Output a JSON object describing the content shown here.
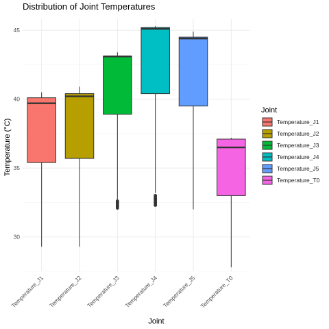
{
  "chart_data": {
    "type": "box",
    "title": "Distribution of Joint Temperatures",
    "xlabel": "Joint",
    "ylabel": "Temperature (°C)",
    "ylim": [
      27.5,
      45.8
    ],
    "yticks": [
      30,
      35,
      40,
      45
    ],
    "grid": true,
    "legend": {
      "title": "Joint",
      "placement": "right"
    },
    "categories": [
      "Temperature_J1",
      "Temperature_J2",
      "Temperature_J3",
      "Temperature_J4",
      "Temperature_J5",
      "Temperature_T0"
    ],
    "series": [
      {
        "name": "Temperature_J1",
        "color": "#F8766D",
        "min": 29.3,
        "q1": 35.4,
        "median": 39.7,
        "q3": 40.1,
        "max": 40.5,
        "outliers": []
      },
      {
        "name": "Temperature_J2",
        "color": "#B79F00",
        "min": 29.3,
        "q1": 35.7,
        "median": 40.2,
        "q3": 40.4,
        "max": 40.9,
        "outliers": []
      },
      {
        "name": "Temperature_J3",
        "color": "#00BA38",
        "min": 32.7,
        "q1": 38.9,
        "median": 43.1,
        "q3": 43.1,
        "max": 43.4,
        "outliers": [
          32.1,
          32.2,
          32.3,
          32.4,
          32.5,
          32.6
        ]
      },
      {
        "name": "Temperature_J4",
        "color": "#00BFC4",
        "min": 33.2,
        "q1": 40.4,
        "median": 45.1,
        "q3": 45.2,
        "max": 45.3,
        "outliers": [
          32.3,
          32.4,
          32.5,
          32.6,
          32.7,
          32.8,
          32.9,
          33.0
        ]
      },
      {
        "name": "Temperature_J5",
        "color": "#619CFF",
        "min": 32.0,
        "q1": 39.5,
        "median": 44.4,
        "q3": 44.5,
        "max": 44.9,
        "outliers": []
      },
      {
        "name": "Temperature_T0",
        "color": "#F564E3",
        "min": 27.8,
        "q1": 33.0,
        "median": 36.5,
        "q3": 37.1,
        "max": 37.2,
        "outliers": []
      }
    ]
  }
}
